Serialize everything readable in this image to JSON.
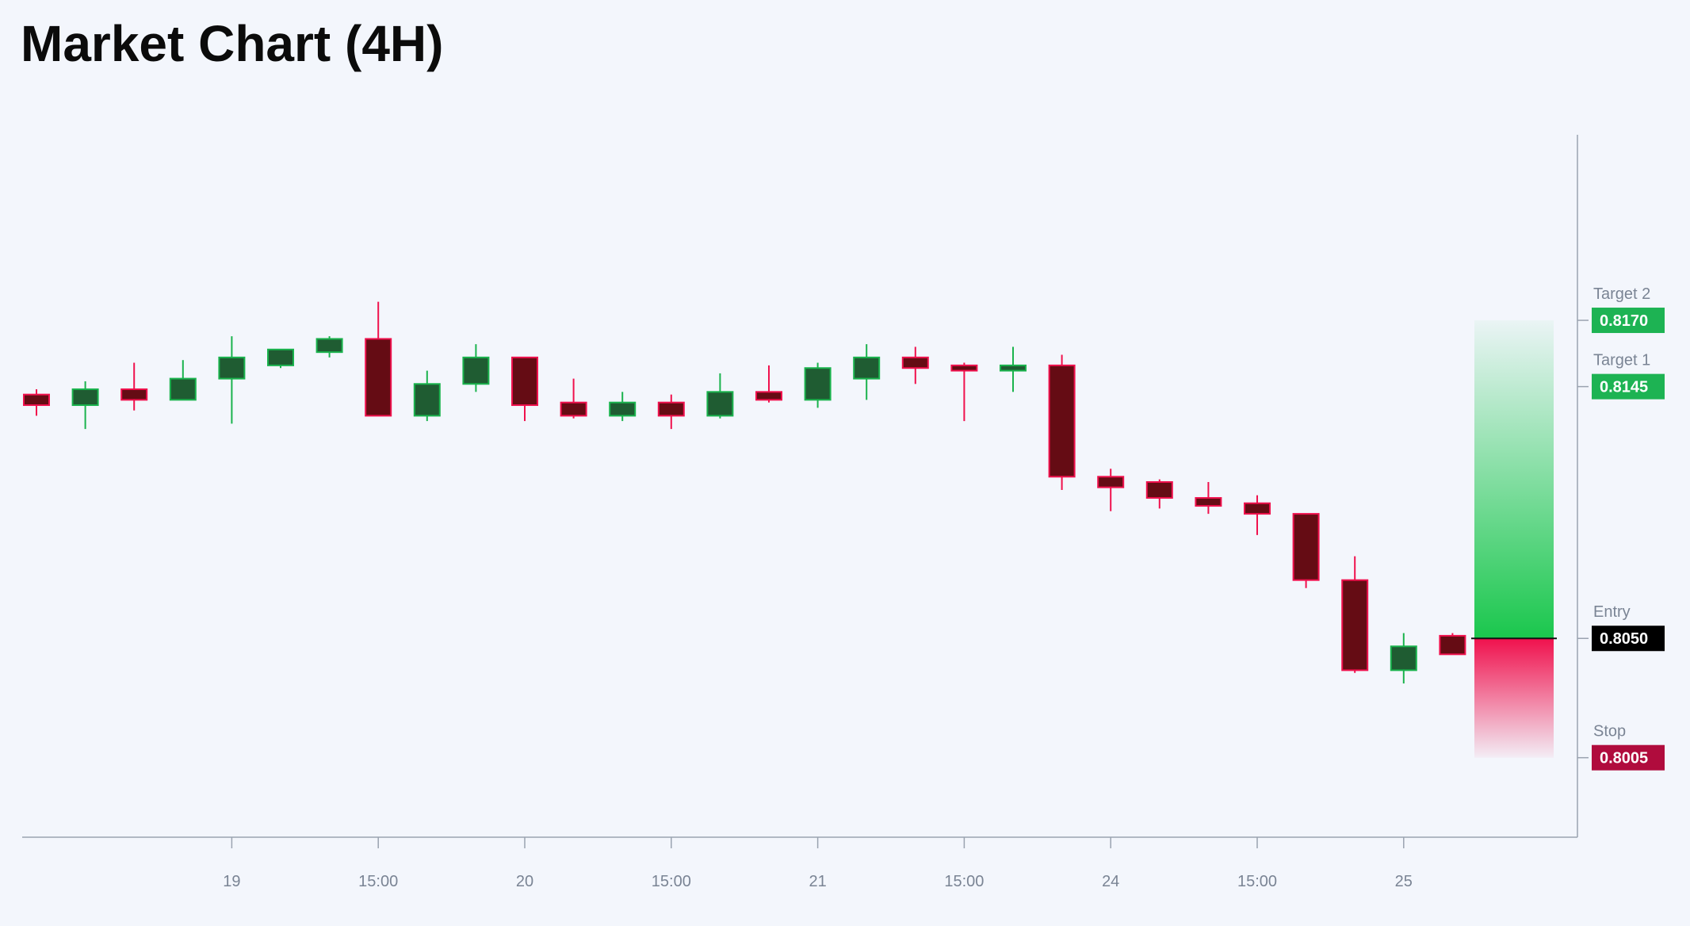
{
  "header": {
    "title": "Market Chart (4H)"
  },
  "colors": {
    "up_body": "#1f5c32",
    "up_border": "#1ab34d",
    "down_body": "#650c14",
    "down_border": "#f0114d",
    "target_badge": "#1db353",
    "entry_badge": "#000000",
    "stop_badge": "#b00c3d",
    "axis": "#9aa3b0",
    "tick_text": "#7a8494"
  },
  "chart_data": {
    "type": "candlestick",
    "title": "Market Chart (4H)",
    "y_range": [
      0.7975,
      0.824
    ],
    "x_ticks": [
      {
        "label": "19",
        "index": 4
      },
      {
        "label": "15:00",
        "index": 7
      },
      {
        "label": "20",
        "index": 10
      },
      {
        "label": "15:00",
        "index": 13
      },
      {
        "label": "21",
        "index": 16
      },
      {
        "label": "15:00",
        "index": 19
      },
      {
        "label": "24",
        "index": 22
      },
      {
        "label": "15:00",
        "index": 25
      },
      {
        "label": "25",
        "index": 28
      }
    ],
    "candles": [
      {
        "o": 0.8142,
        "h": 0.8144,
        "l": 0.8134,
        "c": 0.8138
      },
      {
        "o": 0.8138,
        "h": 0.8147,
        "l": 0.8129,
        "c": 0.8144
      },
      {
        "o": 0.8144,
        "h": 0.8154,
        "l": 0.8136,
        "c": 0.814
      },
      {
        "o": 0.814,
        "h": 0.8155,
        "l": 0.814,
        "c": 0.8148
      },
      {
        "o": 0.8148,
        "h": 0.8164,
        "l": 0.8131,
        "c": 0.8156
      },
      {
        "o": 0.8153,
        "h": 0.8158,
        "l": 0.8152,
        "c": 0.8159
      },
      {
        "o": 0.8158,
        "h": 0.8164,
        "l": 0.8156,
        "c": 0.8163
      },
      {
        "o": 0.8163,
        "h": 0.8177,
        "l": 0.8134,
        "c": 0.8134
      },
      {
        "o": 0.8134,
        "h": 0.8151,
        "l": 0.8132,
        "c": 0.8146
      },
      {
        "o": 0.8146,
        "h": 0.8161,
        "l": 0.8143,
        "c": 0.8156
      },
      {
        "o": 0.8156,
        "h": 0.8156,
        "l": 0.8132,
        "c": 0.8138
      },
      {
        "o": 0.8139,
        "h": 0.8148,
        "l": 0.8133,
        "c": 0.8134
      },
      {
        "o": 0.8134,
        "h": 0.8143,
        "l": 0.8132,
        "c": 0.8139
      },
      {
        "o": 0.8139,
        "h": 0.8142,
        "l": 0.8129,
        "c": 0.8134
      },
      {
        "o": 0.8134,
        "h": 0.815,
        "l": 0.8133,
        "c": 0.8143
      },
      {
        "o": 0.8143,
        "h": 0.8153,
        "l": 0.8139,
        "c": 0.814
      },
      {
        "o": 0.814,
        "h": 0.8154,
        "l": 0.8137,
        "c": 0.8152
      },
      {
        "o": 0.8148,
        "h": 0.8161,
        "l": 0.814,
        "c": 0.8156
      },
      {
        "o": 0.8156,
        "h": 0.816,
        "l": 0.8146,
        "c": 0.8152
      },
      {
        "o": 0.8153,
        "h": 0.8154,
        "l": 0.8132,
        "c": 0.8151
      },
      {
        "o": 0.8151,
        "h": 0.816,
        "l": 0.8143,
        "c": 0.8153
      },
      {
        "o": 0.8153,
        "h": 0.8157,
        "l": 0.8106,
        "c": 0.8111
      },
      {
        "o": 0.8111,
        "h": 0.8114,
        "l": 0.8098,
        "c": 0.8107
      },
      {
        "o": 0.8109,
        "h": 0.811,
        "l": 0.8099,
        "c": 0.8103
      },
      {
        "o": 0.8103,
        "h": 0.8109,
        "l": 0.8097,
        "c": 0.81
      },
      {
        "o": 0.8101,
        "h": 0.8104,
        "l": 0.8089,
        "c": 0.8097
      },
      {
        "o": 0.8097,
        "h": 0.8097,
        "l": 0.8069,
        "c": 0.8072
      },
      {
        "o": 0.8072,
        "h": 0.8081,
        "l": 0.8037,
        "c": 0.8038
      },
      {
        "o": 0.8038,
        "h": 0.8052,
        "l": 0.8033,
        "c": 0.8047
      },
      {
        "o": 0.8051,
        "h": 0.8052,
        "l": 0.8044,
        "c": 0.8044
      }
    ],
    "levels": [
      {
        "label": "Target 2",
        "value": "0.8170",
        "price": 0.817,
        "kind": "target"
      },
      {
        "label": "Target 1",
        "value": "0.8145",
        "price": 0.8145,
        "kind": "target"
      },
      {
        "label": "Entry",
        "value": "0.8050",
        "price": 0.805,
        "kind": "entry"
      },
      {
        "label": "Stop",
        "value": "0.8005",
        "price": 0.8005,
        "kind": "stop"
      }
    ],
    "legend": "none",
    "grid": false
  }
}
